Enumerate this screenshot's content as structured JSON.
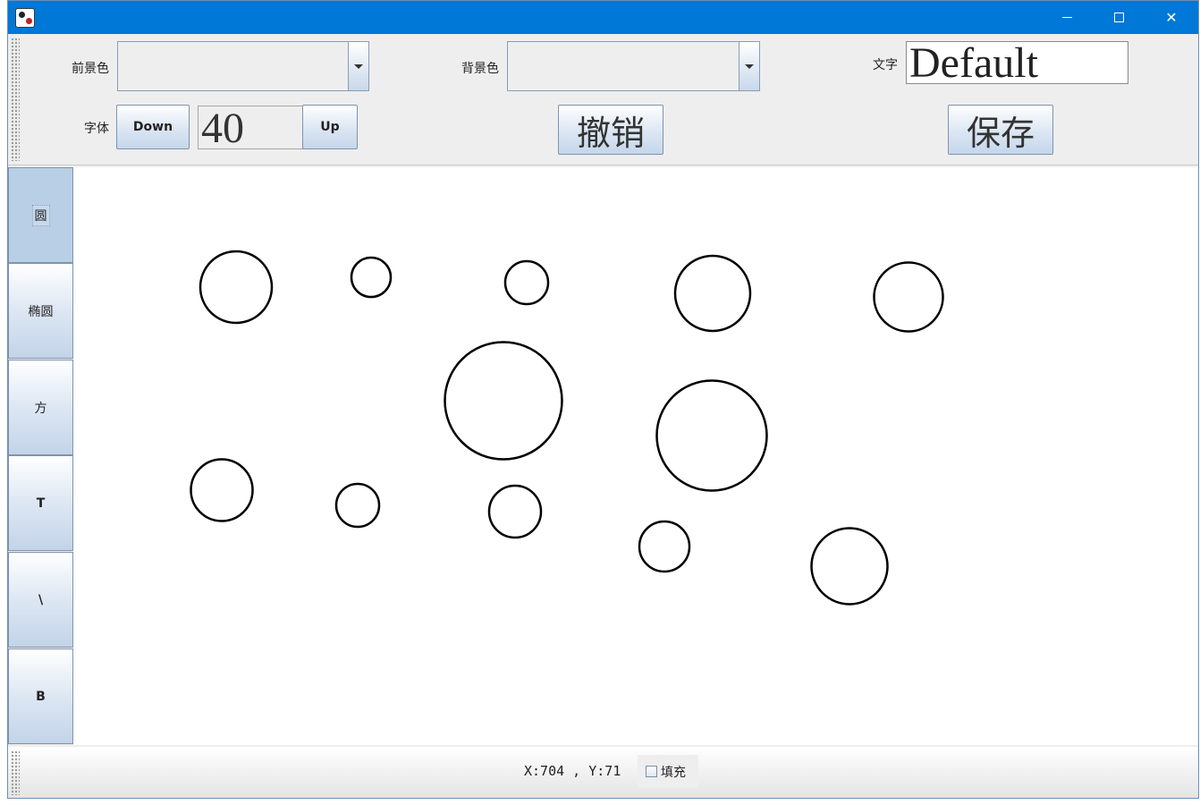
{
  "window": {
    "title": "",
    "controls": {
      "minimize": "minimize",
      "maximize": "maximize",
      "close": "✕"
    }
  },
  "toolbar": {
    "foreground_label": "前景色",
    "foreground_value": "",
    "background_label": "背景色",
    "background_value": "",
    "text_label": "文字",
    "text_value": "Default",
    "font_label": "字体",
    "font_down": "Down",
    "font_size": "40",
    "font_up": "Up",
    "undo": "撤销",
    "save": "保存"
  },
  "tools": [
    {
      "label": "圆",
      "selected": true
    },
    {
      "label": "椭圆",
      "selected": false
    },
    {
      "label": "方",
      "selected": false
    },
    {
      "label": "T",
      "selected": false
    },
    {
      "label": "\\",
      "selected": false
    },
    {
      "label": "B",
      "selected": false
    }
  ],
  "status": {
    "coords": "X:704 , Y:71",
    "fill_label": "填充",
    "fill_checked": false
  },
  "colors": {
    "titlebar": "#0078d7",
    "panel": "#eeeeee",
    "stroke": "#000000"
  }
}
